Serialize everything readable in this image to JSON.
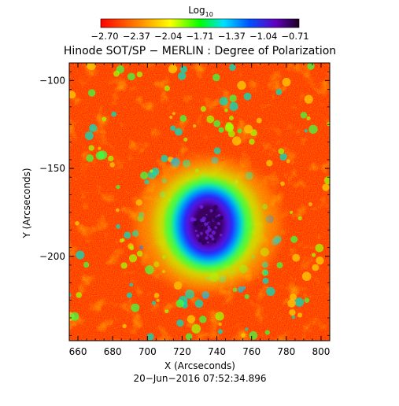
{
  "chart_data": {
    "type": "heatmap",
    "title": "Hinode SOT/SP − MERLIN : Degree of Polarization",
    "xlabel": "X (Arcseconds)",
    "ylabel": "Y (Arcseconds)",
    "xlim": [
      655,
      805
    ],
    "ylim": [
      -248,
      -90
    ],
    "xticks": [
      660,
      680,
      700,
      720,
      740,
      760,
      780,
      800
    ],
    "yticks": [
      -100,
      -150,
      -200
    ],
    "xtick_labels": [
      "660",
      "680",
      "700",
      "720",
      "740",
      "760",
      "780",
      "800"
    ],
    "ytick_labels": [
      "−100",
      "−150",
      "−200"
    ],
    "colorbar": {
      "label_base": "Log",
      "label_sub": "10",
      "range": [
        -2.7,
        -0.71
      ],
      "ticks": [
        "−2.70",
        "−2.37",
        "−2.04",
        "−1.71",
        "−1.37",
        "−1.04",
        "−0.71"
      ],
      "colormap": "rainbow (red low → violet/black high)"
    },
    "features": {
      "sunspot_center": [
        735,
        -182
      ],
      "umbra_value": -0.8,
      "background_value": -2.6
    },
    "timestamp": "20−Jun−2016 07:52:34.896"
  },
  "colors": {
    "low": "#ff0000",
    "mid": "#00ff00",
    "high": "#2a0040"
  }
}
